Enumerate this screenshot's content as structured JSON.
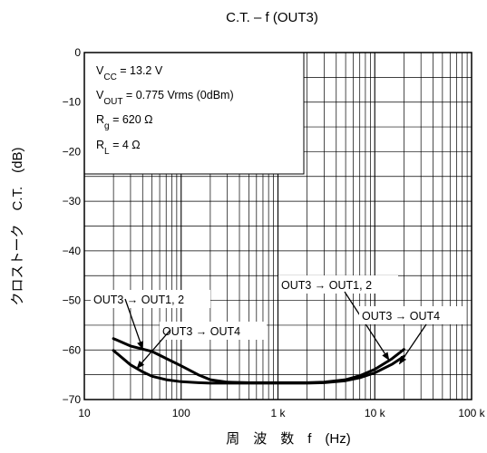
{
  "chart_data": {
    "type": "line",
    "title": "C.T. – f (OUT3)",
    "xlabel": "周　波　数　f　(Hz)",
    "ylabel": "クロストーク　C.T.　(dB)",
    "x_scale": "log",
    "xlim": [
      10,
      100000
    ],
    "ylim": [
      -70,
      0
    ],
    "x_ticks": [
      {
        "value": 10,
        "label": "10"
      },
      {
        "value": 100,
        "label": "100"
      },
      {
        "value": 1000,
        "label": "1 k"
      },
      {
        "value": 10000,
        "label": "10 k"
      },
      {
        "value": 100000,
        "label": "100 k"
      }
    ],
    "y_ticks": [
      {
        "value": 0,
        "label": "0"
      },
      {
        "value": -10,
        "label": "−10"
      },
      {
        "value": -20,
        "label": "−20"
      },
      {
        "value": -30,
        "label": "−30"
      },
      {
        "value": -40,
        "label": "−40"
      },
      {
        "value": -50,
        "label": "−50"
      },
      {
        "value": -60,
        "label": "−60"
      },
      {
        "value": -70,
        "label": "−70"
      }
    ],
    "grid": true,
    "conditions": [
      {
        "main": "V",
        "sub": "CC",
        "rest": " = 13.2 V"
      },
      {
        "main": "V",
        "sub": "OUT",
        "rest": " = 0.775 Vrms (0dBm)"
      },
      {
        "main": "R",
        "sub": "g",
        "rest": " = 620 Ω"
      },
      {
        "main": "R",
        "sub": "L",
        "rest": " = 4 Ω"
      }
    ],
    "series": [
      {
        "x": [
          20,
          30,
          50,
          70,
          100,
          150,
          200,
          300,
          500,
          700,
          1000,
          2000,
          3000,
          5000,
          7000,
          10000,
          15000,
          20000
        ],
        "y": [
          -57.7,
          -59.2,
          -60.3,
          -61.7,
          -63.2,
          -65,
          -66,
          -66.5,
          -66.6,
          -66.6,
          -66.6,
          -66.6,
          -66.5,
          -66,
          -65.2,
          -63.9,
          -61.8,
          -59.9
        ]
      },
      {
        "x": [
          20,
          30,
          40,
          50,
          70,
          100,
          150,
          200,
          300,
          500,
          700,
          1000,
          2000,
          3000,
          5000,
          7000,
          10000,
          15000,
          20000
        ],
        "y": [
          -60.1,
          -63,
          -64.4,
          -65.3,
          -66,
          -66.4,
          -66.6,
          -66.7,
          -66.7,
          -66.7,
          -66.7,
          -66.7,
          -66.7,
          -66.6,
          -66.2,
          -65.6,
          -64.6,
          -62.9,
          -61.3
        ]
      }
    ],
    "annotations": [
      {
        "text": "OUT3 → OUT1, 2",
        "target_x": 40,
        "target_y": -59.8
      },
      {
        "text": "OUT3 → OUT4",
        "target_x": 35,
        "target_y": -63.7
      },
      {
        "text": "OUT3 → OUT1, 2",
        "target_x": 14000,
        "target_y": -62.0
      },
      {
        "text": "OUT3 → OUT4",
        "target_x": 18000,
        "target_y": -62.8
      }
    ]
  }
}
